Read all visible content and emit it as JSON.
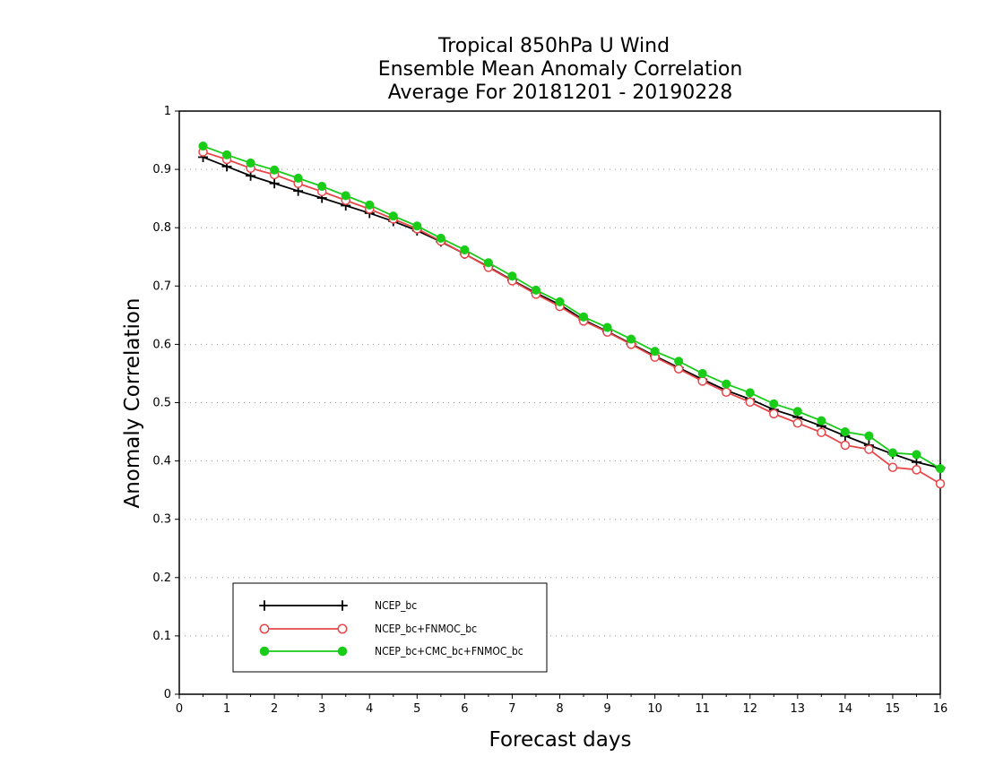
{
  "chart_data": {
    "type": "line",
    "title": [
      "Tropical 850hPa U Wind",
      "Ensemble Mean Anomaly Correlation",
      "Average For 20181201 - 20190228"
    ],
    "xlabel": "Forecast days",
    "ylabel": "Anomaly Correlation",
    "xlim": [
      0,
      16
    ],
    "ylim": [
      0,
      1
    ],
    "xticks": [
      0,
      1,
      2,
      3,
      4,
      5,
      6,
      7,
      8,
      9,
      10,
      11,
      12,
      13,
      14,
      15,
      16
    ],
    "xtick_labels": [
      "0",
      "1",
      "2",
      "3",
      "4",
      "5",
      "6",
      "7",
      "8",
      "9",
      "10",
      "11",
      "12",
      "13",
      "14",
      "15",
      "16"
    ],
    "yticks": [
      0,
      0.1,
      0.2,
      0.3,
      0.4,
      0.5,
      0.6,
      0.7,
      0.8,
      0.9,
      1
    ],
    "ytick_labels": [
      "0",
      "0.1",
      "0.2",
      "0.3",
      "0.4",
      "0.5",
      "0.6",
      "0.7",
      "0.8",
      "0.9",
      "1"
    ],
    "grid": "horizontal-dotted",
    "legend_position": "bottom-left",
    "x": [
      0.5,
      1,
      1.5,
      2,
      2.5,
      3,
      3.5,
      4,
      4.5,
      5,
      5.5,
      6,
      6.5,
      7,
      7.5,
      8,
      8.5,
      9,
      9.5,
      10,
      10.5,
      11,
      11.5,
      12,
      12.5,
      13,
      13.5,
      14,
      14.5,
      15,
      15.5,
      16
    ],
    "series": [
      {
        "name": "NCEP_bc",
        "color": "#000000",
        "marker": "plus",
        "values": [
          0.921,
          0.905,
          0.889,
          0.876,
          0.863,
          0.851,
          0.838,
          0.825,
          0.811,
          0.795,
          0.776,
          0.755,
          0.733,
          0.71,
          0.688,
          0.668,
          0.642,
          0.622,
          0.601,
          0.58,
          0.56,
          0.54,
          0.521,
          0.506,
          0.488,
          0.475,
          0.46,
          0.443,
          0.427,
          0.412,
          0.398,
          0.388
        ]
      },
      {
        "name": "NCEP_bc+FNMOC_bc",
        "color": "#e8474a",
        "marker": "open-circle",
        "values": [
          0.93,
          0.917,
          0.902,
          0.891,
          0.876,
          0.862,
          0.847,
          0.832,
          0.815,
          0.798,
          0.777,
          0.755,
          0.732,
          0.709,
          0.686,
          0.665,
          0.64,
          0.621,
          0.6,
          0.578,
          0.558,
          0.537,
          0.518,
          0.501,
          0.481,
          0.465,
          0.449,
          0.427,
          0.42,
          0.389,
          0.385,
          0.361
        ]
      },
      {
        "name": "NCEP_bc+CMC_bc+FNMOC_bc",
        "color": "#18cc18",
        "marker": "filled-circle",
        "values": [
          0.94,
          0.925,
          0.911,
          0.899,
          0.885,
          0.871,
          0.855,
          0.839,
          0.82,
          0.803,
          0.782,
          0.762,
          0.74,
          0.717,
          0.693,
          0.673,
          0.647,
          0.629,
          0.609,
          0.588,
          0.571,
          0.55,
          0.532,
          0.517,
          0.498,
          0.485,
          0.469,
          0.45,
          0.443,
          0.414,
          0.411,
          0.387
        ]
      }
    ]
  }
}
